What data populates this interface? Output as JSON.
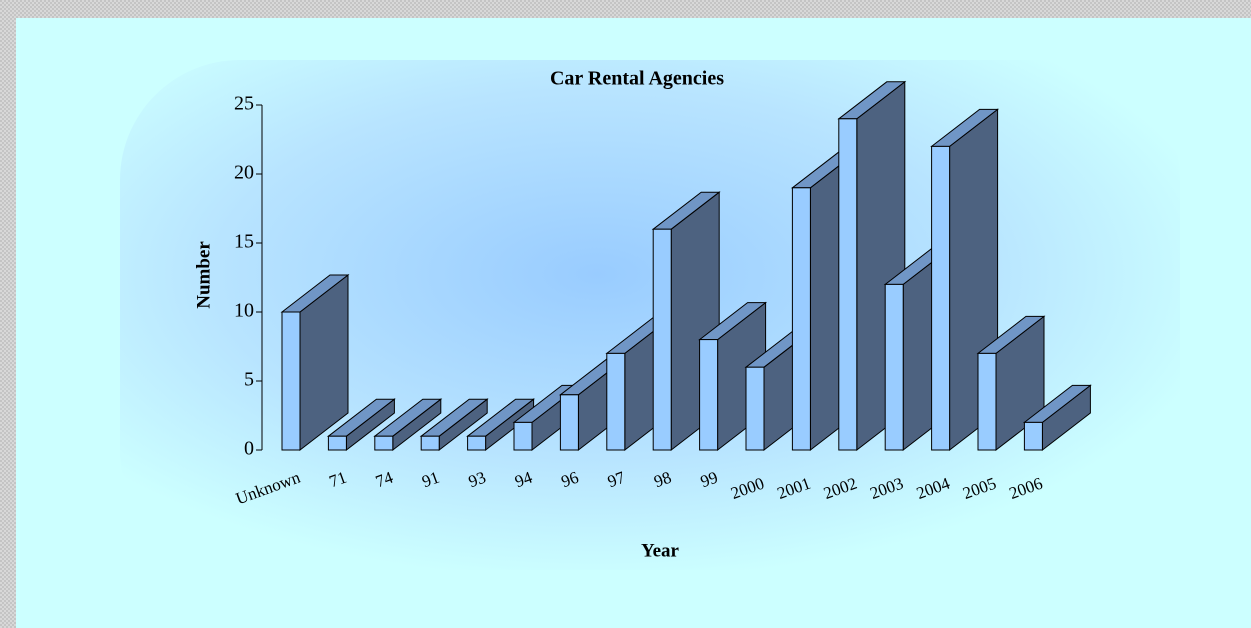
{
  "chart_data": {
    "type": "bar3d",
    "title": "Car Rental Agencies",
    "x_label": "Year",
    "y_label": "Number",
    "categories": [
      "Unknown",
      "71",
      "74",
      "91",
      "93",
      "94",
      "96",
      "97",
      "98",
      "99",
      "2000",
      "2001",
      "2002",
      "2003",
      "2004",
      "2005",
      "2006"
    ],
    "values": [
      10,
      1,
      1,
      1,
      1,
      2,
      4,
      7,
      16,
      8,
      6,
      19,
      24,
      12,
      22,
      7,
      2
    ],
    "color": "#99ccff",
    "side_color": "#4d6280",
    "top_color": "#7096c6",
    "ylim": [
      0,
      25
    ],
    "yticks": [
      0,
      5,
      10,
      15,
      20,
      25
    ]
  }
}
